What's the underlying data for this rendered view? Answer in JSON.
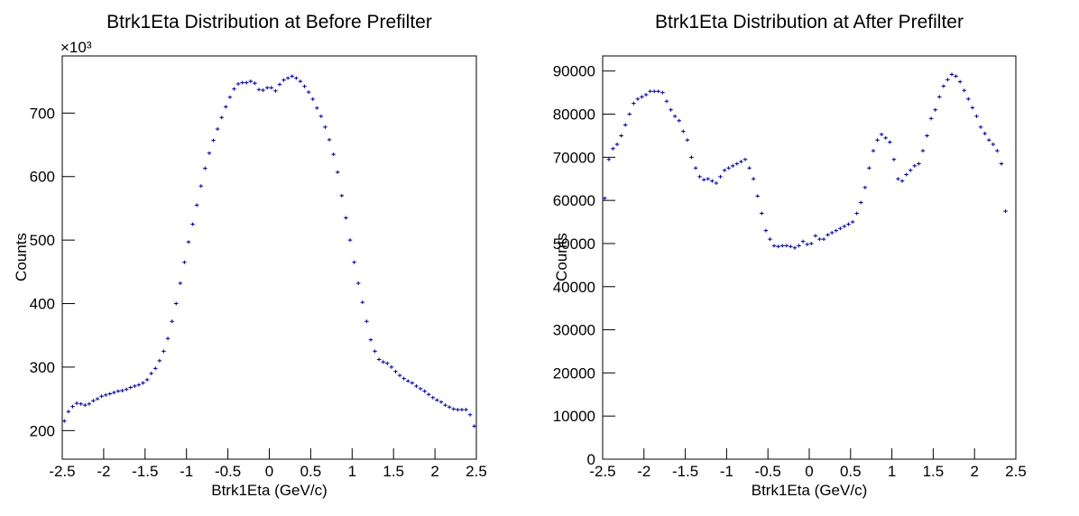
{
  "chart_data": [
    {
      "type": "histogram",
      "title": "Btrk1Eta Distribution at Before Prefilter",
      "x_label": "Btrk1Eta (GeV/c)",
      "y_label": "Counts",
      "y_multiplier": "×10³",
      "color": "#000099",
      "bins": [
        -2.5,
        -2.45,
        -2.4,
        -2.35,
        -2.3,
        -2.25,
        -2.2,
        -2.15,
        -2.1,
        -2.05,
        -2,
        -1.95,
        -1.9,
        -1.85,
        -1.8,
        -1.75,
        -1.7,
        -1.65,
        -1.6,
        -1.55,
        -1.5,
        -1.45,
        -1.4,
        -1.35,
        -1.3,
        -1.25,
        -1.2,
        -1.15,
        -1.1,
        -1.05,
        -1,
        -0.95,
        -0.9,
        -0.85,
        -0.8,
        -0.75,
        -0.7,
        -0.65,
        -0.6,
        -0.55,
        -0.5,
        -0.45,
        -0.4,
        -0.35,
        -0.3,
        -0.25,
        -0.2,
        -0.15,
        -0.1,
        -0.05,
        0,
        0.05,
        0.1,
        0.15,
        0.2,
        0.25,
        0.3,
        0.35,
        0.4,
        0.45,
        0.5,
        0.55,
        0.6,
        0.65,
        0.7,
        0.75,
        0.8,
        0.85,
        0.9,
        0.95,
        1,
        1.05,
        1.1,
        1.15,
        1.2,
        1.25,
        1.3,
        1.35,
        1.4,
        1.45,
        1.5,
        1.55,
        1.6,
        1.65,
        1.7,
        1.75,
        1.8,
        1.85,
        1.9,
        1.95,
        2,
        2.05,
        2.1,
        2.15,
        2.2,
        2.25,
        2.3,
        2.35,
        2.4,
        2.45,
        2.5
      ],
      "values": [
        215,
        230,
        238,
        243,
        242,
        240,
        242,
        247,
        250,
        254,
        256,
        258,
        260,
        262,
        263,
        265,
        268,
        270,
        272,
        275,
        280,
        290,
        298,
        310,
        325,
        345,
        372,
        400,
        432,
        465,
        497,
        525,
        555,
        585,
        613,
        637,
        657,
        675,
        693,
        710,
        725,
        738,
        746,
        748,
        748,
        750,
        747,
        737,
        736,
        740,
        740,
        735,
        745,
        752,
        755,
        758,
        755,
        750,
        742,
        733,
        722,
        708,
        695,
        678,
        658,
        635,
        607,
        570,
        535,
        500,
        465,
        432,
        402,
        372,
        343,
        325,
        312,
        308,
        306,
        300,
        293,
        287,
        282,
        278,
        275,
        270,
        266,
        262,
        257,
        252,
        248,
        245,
        240,
        237,
        234,
        233,
        233,
        233,
        225,
        207
      ],
      "xlim": [
        -2.5,
        2.5
      ],
      "ylim": [
        155,
        790
      ],
      "xticks": [
        -2.5,
        -2,
        -1.5,
        -1,
        -0.5,
        0,
        0.5,
        1,
        1.5,
        2,
        2.5
      ],
      "yticks": [
        200,
        300,
        400,
        500,
        600,
        700
      ]
    },
    {
      "type": "histogram",
      "title": "Btrk1Eta Distribution at After Prefilter",
      "x_label": "Btrk1Eta (GeV/c)",
      "y_label": "Counts",
      "color": "#000099",
      "bins": [
        -2.5,
        -2.45,
        -2.4,
        -2.35,
        -2.3,
        -2.25,
        -2.2,
        -2.15,
        -2.1,
        -2.05,
        -2,
        -1.95,
        -1.9,
        -1.85,
        -1.8,
        -1.75,
        -1.7,
        -1.65,
        -1.6,
        -1.55,
        -1.5,
        -1.45,
        -1.4,
        -1.35,
        -1.3,
        -1.25,
        -1.2,
        -1.15,
        -1.1,
        -1.05,
        -1,
        -0.95,
        -0.9,
        -0.85,
        -0.8,
        -0.75,
        -0.7,
        -0.65,
        -0.6,
        -0.55,
        -0.5,
        -0.45,
        -0.4,
        -0.35,
        -0.3,
        -0.25,
        -0.2,
        -0.15,
        -0.1,
        -0.05,
        0,
        0.05,
        0.1,
        0.15,
        0.2,
        0.25,
        0.3,
        0.35,
        0.4,
        0.45,
        0.5,
        0.55,
        0.6,
        0.65,
        0.7,
        0.75,
        0.8,
        0.85,
        0.9,
        0.95,
        1,
        1.05,
        1.1,
        1.15,
        1.2,
        1.25,
        1.3,
        1.35,
        1.4,
        1.45,
        1.5,
        1.55,
        1.6,
        1.65,
        1.7,
        1.75,
        1.8,
        1.85,
        1.9,
        1.95,
        2,
        2.05,
        2.1,
        2.15,
        2.2,
        2.25,
        2.3,
        2.35,
        2.4,
        2.45,
        2.5
      ],
      "values": [
        60500,
        69500,
        72000,
        73000,
        75000,
        77500,
        80000,
        82500,
        83500,
        84000,
        84500,
        85300,
        85300,
        85300,
        85000,
        83000,
        81000,
        79500,
        78500,
        76000,
        74000,
        70000,
        67500,
        65500,
        64800,
        65000,
        64500,
        64000,
        65500,
        67000,
        67500,
        68000,
        68500,
        69000,
        69500,
        67500,
        65000,
        61000,
        57000,
        53000,
        51000,
        49500,
        49300,
        49500,
        49500,
        49300,
        49000,
        49500,
        50500,
        49800,
        50000,
        51800,
        51000,
        51000,
        52000,
        52500,
        53000,
        53500,
        54000,
        54500,
        55000,
        57000,
        59500,
        63000,
        67500,
        71500,
        74000,
        75300,
        74500,
        73500,
        69500,
        65000,
        64500,
        66000,
        67000,
        68000,
        68500,
        71500,
        75000,
        79000,
        81000,
        84000,
        86500,
        88000,
        89200,
        88800,
        87500,
        85500,
        83500,
        81500,
        79500,
        77000,
        75500,
        74000,
        73000,
        71500,
        68500,
        57500,
        null,
        null
      ],
      "xlim": [
        -2.5,
        2.5
      ],
      "ylim": [
        0,
        93500
      ],
      "xticks": [
        -2.5,
        -2,
        -1.5,
        -1,
        -0.5,
        0,
        0.5,
        1,
        1.5,
        2,
        2.5
      ],
      "yticks": [
        0,
        10000,
        20000,
        30000,
        40000,
        50000,
        60000,
        70000,
        80000,
        90000
      ]
    }
  ]
}
